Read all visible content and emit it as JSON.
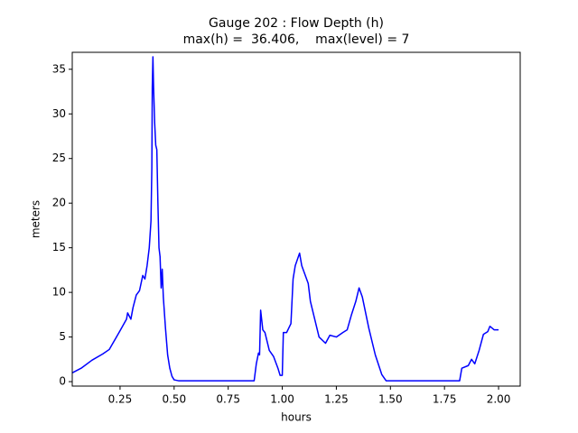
{
  "chart_data": {
    "type": "line",
    "title": "Gauge 202 : Flow Depth (h)",
    "subtitle": "max(h) =  36.406,    max(level) = 7",
    "x_label": "hours",
    "y_label": "meters",
    "xlim": [
      0.029,
      2.1
    ],
    "ylim": [
      -0.5,
      36.9
    ],
    "xticks": [
      0.25,
      {
        "value": 0.5,
        "label": "0.50"
      },
      0.75,
      {
        "value": 1.0,
        "label": "1.00"
      },
      1.25,
      {
        "value": 1.5,
        "label": "1.50"
      },
      1.75,
      {
        "value": 2.0,
        "label": "2.00"
      }
    ],
    "yticks": [
      0,
      5,
      10,
      15,
      20,
      25,
      30,
      35
    ],
    "grid": false,
    "series": [
      {
        "name": "h",
        "color": "#0000ff",
        "x": [
          0.03,
          0.07,
          0.12,
          0.17,
          0.2,
          0.25,
          0.28,
          0.285,
          0.3,
          0.31,
          0.325,
          0.34,
          0.355,
          0.365,
          0.375,
          0.385,
          0.393,
          0.397,
          0.399,
          0.402,
          0.405,
          0.41,
          0.415,
          0.42,
          0.425,
          0.43,
          0.435,
          0.44,
          0.445,
          0.45,
          0.46,
          0.47,
          0.48,
          0.49,
          0.5,
          0.52,
          0.87,
          0.88,
          0.89,
          0.895,
          0.9,
          0.91,
          0.92,
          0.94,
          0.96,
          0.98,
          0.99,
          1.0,
          1.005,
          1.02,
          1.04,
          1.05,
          1.06,
          1.08,
          1.09,
          1.12,
          1.13,
          1.14,
          1.15,
          1.17,
          1.2,
          1.22,
          1.25,
          1.28,
          1.3,
          1.32,
          1.34,
          1.355,
          1.37,
          1.4,
          1.43,
          1.46,
          1.48,
          1.82,
          1.83,
          1.86,
          1.875,
          1.89,
          1.91,
          1.93,
          1.95,
          1.96,
          1.98,
          2.0
        ],
        "values": [
          1.0,
          1.5,
          2.4,
          3.1,
          3.6,
          5.7,
          7.0,
          7.7,
          7.0,
          8.3,
          9.7,
          10.2,
          11.9,
          11.5,
          13,
          15,
          18,
          24,
          33,
          36.4,
          33,
          29,
          26.5,
          26,
          20,
          15,
          14,
          10.5,
          12.6,
          9.5,
          6,
          3,
          1.5,
          0.6,
          0.2,
          0.1,
          0.1,
          2,
          3.2,
          3,
          8,
          5.8,
          5.5,
          3.5,
          2.8,
          1.5,
          0.7,
          0.7,
          5.5,
          5.5,
          6.5,
          11.5,
          13,
          14.4,
          13,
          11,
          9,
          8,
          7,
          5,
          4.3,
          5.2,
          5.0,
          5.5,
          5.8,
          7.5,
          9,
          10.5,
          9.5,
          6,
          3,
          0.8,
          0.1,
          0.1,
          1.5,
          1.8,
          2.5,
          2.0,
          3.5,
          5.3,
          5.6,
          6.2,
          5.8,
          5.8
        ]
      }
    ]
  }
}
